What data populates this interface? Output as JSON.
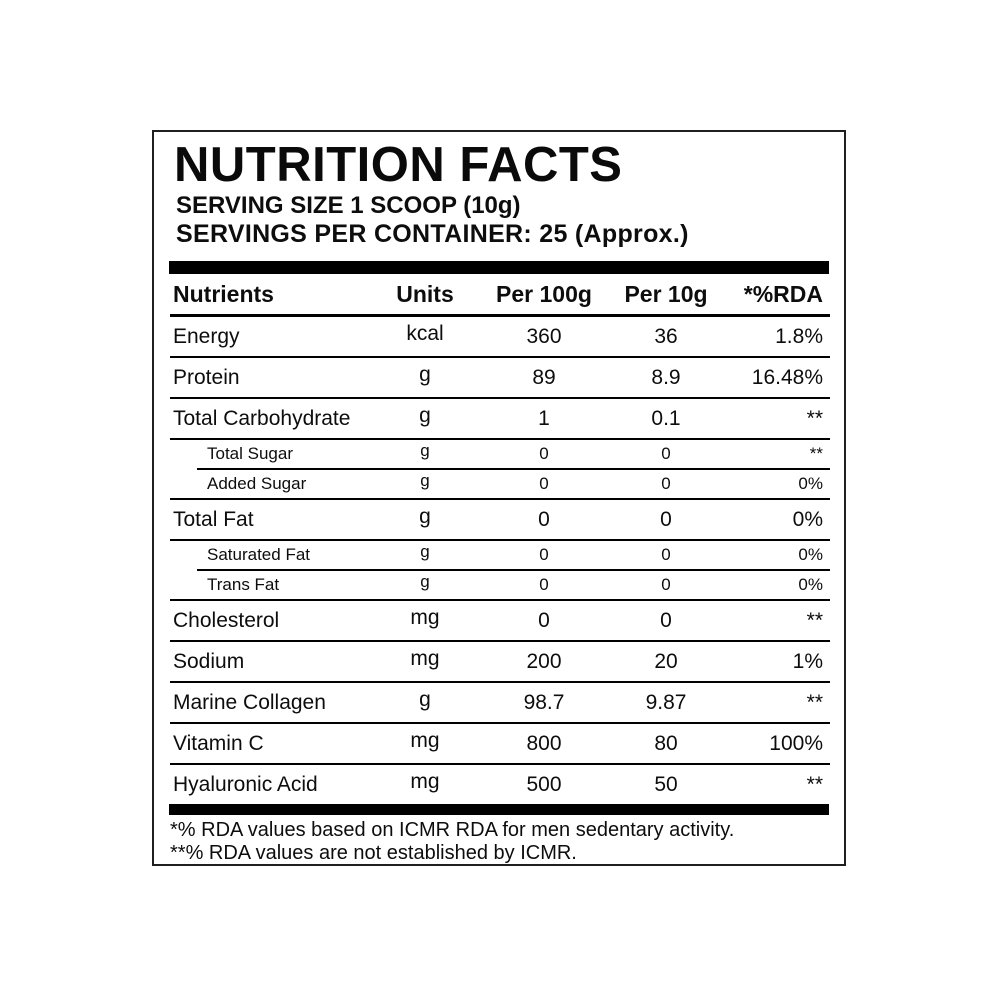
{
  "label": {
    "title": "NUTRITION FACTS",
    "serving_size": "SERVING SIZE 1 SCOOP (10g)",
    "servings_per_container": "SERVINGS PER CONTAINER: 25 (Approx.)"
  },
  "table": {
    "headers": {
      "nutrients": "Nutrients",
      "units": "Units",
      "per_100g": "Per 100g",
      "per_10g": "Per 10g",
      "rda": "*%RDA"
    },
    "rows": [
      {
        "name": "Energy",
        "unit": "kcal",
        "per_100g": "360",
        "per_10g": "36",
        "rda": "1.8%",
        "sub": false
      },
      {
        "name": "Protein",
        "unit": "g",
        "per_100g": "89",
        "per_10g": "8.9",
        "rda": "16.48%",
        "sub": false
      },
      {
        "name": "Total Carbohydrate",
        "unit": "g",
        "per_100g": "1",
        "per_10g": "0.1",
        "rda": "**",
        "sub": false
      },
      {
        "name": "Total Sugar",
        "unit": "g",
        "per_100g": "0",
        "per_10g": "0",
        "rda": "**",
        "sub": true
      },
      {
        "name": "Added Sugar",
        "unit": "g",
        "per_100g": "0",
        "per_10g": "0",
        "rda": "0%",
        "sub": true
      },
      {
        "name": "Total Fat",
        "unit": "g",
        "per_100g": "0",
        "per_10g": "0",
        "rda": "0%",
        "sub": false
      },
      {
        "name": "Saturated Fat",
        "unit": "g",
        "per_100g": "0",
        "per_10g": "0",
        "rda": "0%",
        "sub": true
      },
      {
        "name": "Trans Fat",
        "unit": "g",
        "per_100g": "0",
        "per_10g": "0",
        "rda": "0%",
        "sub": true
      },
      {
        "name": "Cholesterol",
        "unit": "mg",
        "per_100g": "0",
        "per_10g": "0",
        "rda": "**",
        "sub": false
      },
      {
        "name": "Sodium",
        "unit": "mg",
        "per_100g": "200",
        "per_10g": "20",
        "rda": "1%",
        "sub": false
      },
      {
        "name": "Marine Collagen",
        "unit": "g",
        "per_100g": "98.7",
        "per_10g": "9.87",
        "rda": "**",
        "sub": false
      },
      {
        "name": "Vitamin C",
        "unit": "mg",
        "per_100g": "800",
        "per_10g": "80",
        "rda": "100%",
        "sub": false
      },
      {
        "name": "Hyaluronic Acid",
        "unit": "mg",
        "per_100g": "500",
        "per_10g": "50",
        "rda": "**",
        "sub": false
      }
    ]
  },
  "footnotes": {
    "line1": "*% RDA values based on ICMR RDA for men sedentary activity.",
    "line2": "**% RDA values are not established by ICMR."
  }
}
